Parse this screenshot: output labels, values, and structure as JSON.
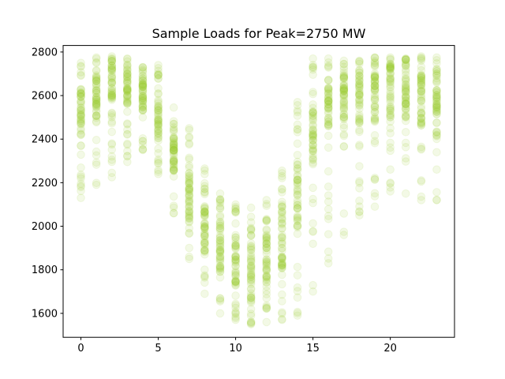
{
  "chart_data": {
    "type": "scatter",
    "title": "Sample Loads for Peak=2750 MW",
    "xlabel": "",
    "ylabel": "",
    "xlim": [
      -1.15,
      24.15
    ],
    "ylim": [
      1490,
      2830
    ],
    "x_ticks": [
      0,
      5,
      10,
      15,
      20
    ],
    "y_ticks": [
      1600,
      1800,
      2000,
      2200,
      2400,
      2600,
      2800
    ],
    "grid": false,
    "legend": "none",
    "marker_color": "#9acd32",
    "marker_alpha": 0.12,
    "series": [
      {
        "hours": [
          0,
          1,
          2,
          3,
          4,
          5,
          6,
          7,
          8,
          9,
          10,
          11,
          12,
          13,
          14,
          15,
          16,
          17,
          18,
          19,
          20,
          21,
          22,
          23
        ],
        "min": [
          2130,
          2190,
          2225,
          2295,
          2350,
          2240,
          2060,
          1850,
          1690,
          1600,
          1570,
          1550,
          1560,
          1570,
          1590,
          1700,
          1830,
          1960,
          2050,
          2090,
          2160,
          2150,
          2120,
          2120
        ],
        "q_low": [
          2420,
          2480,
          2580,
          2560,
          2530,
          2400,
          2250,
          2030,
          1870,
          1790,
          1740,
          1710,
          1740,
          1820,
          1990,
          2280,
          2440,
          2500,
          2470,
          2470,
          2480,
          2480,
          2430,
          2400
        ],
        "q_high": [
          2640,
          2690,
          2740,
          2710,
          2670,
          2570,
          2420,
          2250,
          2100,
          2010,
          1960,
          1930,
          1980,
          2100,
          2300,
          2560,
          2660,
          2690,
          2680,
          2690,
          2710,
          2700,
          2680,
          2700
        ],
        "max": [
          2750,
          2775,
          2780,
          2770,
          2730,
          2740,
          2545,
          2450,
          2265,
          2150,
          2100,
          2085,
          2120,
          2255,
          2570,
          2770,
          2770,
          2760,
          2760,
          2775,
          2775,
          2770,
          2780,
          2775
        ]
      }
    ]
  }
}
